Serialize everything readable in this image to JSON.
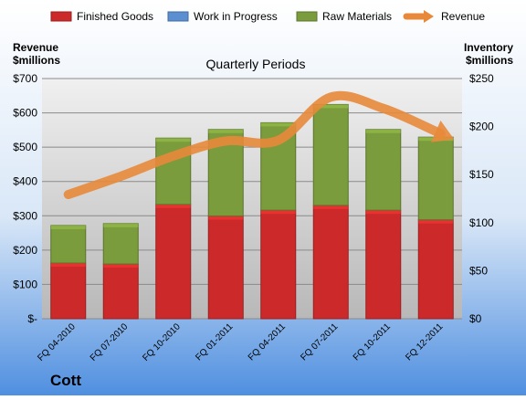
{
  "company": "Cott",
  "chart_data": {
    "type": "bar",
    "title": "Quarterly Periods",
    "categories": [
      "FQ 04-2010",
      "FQ 07-2010",
      "FQ 10-2010",
      "FQ 01-2011",
      "FQ 04-2011",
      "FQ 07-2011",
      "FQ 10-2011",
      "FQ 12-2011"
    ],
    "left_axis": {
      "label_line1": "Revenue",
      "label_line2": "$millions",
      "ylim": [
        0,
        700
      ],
      "ticks": [
        0,
        100,
        200,
        300,
        400,
        500,
        600,
        700
      ],
      "tick_labels": [
        "$-",
        "$100",
        "$200",
        "$300",
        "$400",
        "$500",
        "$600",
        "$700"
      ]
    },
    "right_axis": {
      "label_line1": "Inventory",
      "label_line2": "$millions",
      "ylim": [
        0,
        250
      ],
      "ticks": [
        0,
        50,
        100,
        150,
        200,
        250
      ],
      "tick_labels": [
        "$0",
        "$50",
        "$100",
        "$150",
        "$200",
        "$250"
      ]
    },
    "series": [
      {
        "name": "Finished Goods",
        "kind": "stacked-bar",
        "axis": "right",
        "color": "#cc2a2a",
        "values": [
          58,
          57,
          119,
          107,
          113,
          118,
          113,
          103
        ]
      },
      {
        "name": "Work in Progress",
        "kind": "stacked-bar",
        "axis": "right",
        "color": "#5b8fd1",
        "values": [
          0,
          0,
          0,
          0,
          0,
          0,
          0,
          0
        ]
      },
      {
        "name": "Raw Materials",
        "kind": "stacked-bar",
        "axis": "right",
        "color": "#7b9c3c",
        "values": [
          39,
          42,
          69,
          90,
          91,
          105,
          84,
          86
        ]
      },
      {
        "name": "Revenue",
        "kind": "line",
        "axis": "left",
        "color": "#e8893a",
        "values": [
          362,
          415,
          474,
          518,
          520,
          646,
          613,
          546
        ]
      }
    ],
    "legend_placement": "top",
    "grid": true
  }
}
